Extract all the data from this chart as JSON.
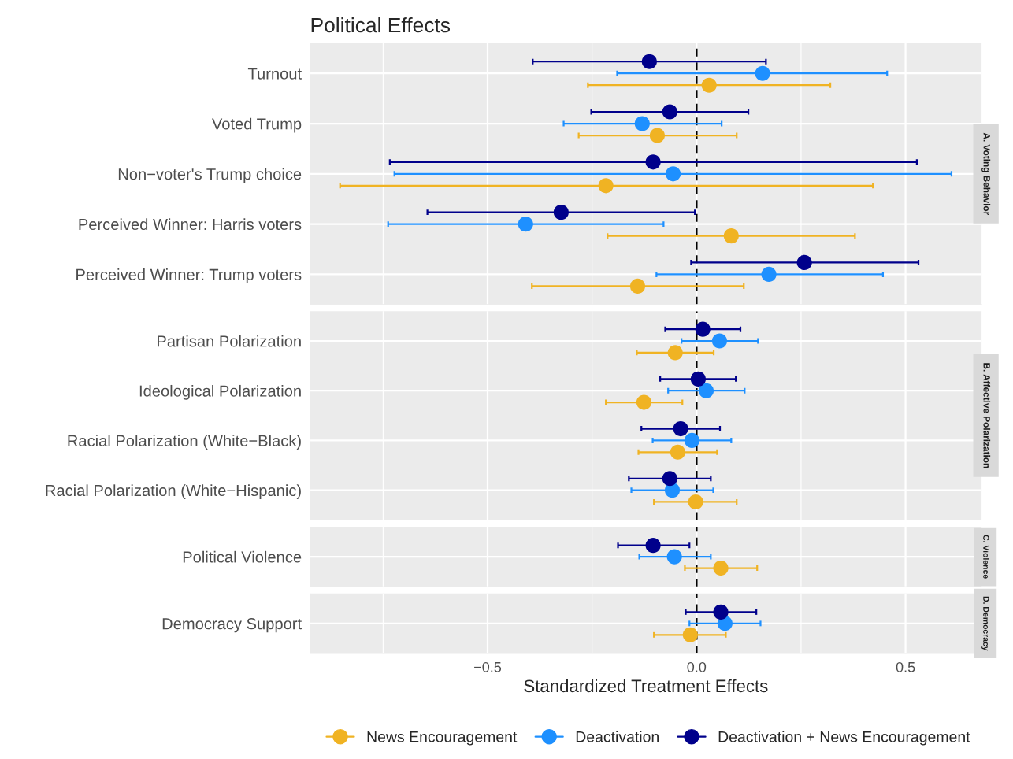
{
  "chart_data": [
    {
      "type": "scatter",
      "orientation": "horizontal",
      "title": "Political Effects",
      "y2label": "A. Voting Behavior",
      "categories": [
        "Turnout",
        "Voted Trump",
        "Non−voter's Trump choice",
        "Perceived Winner: Harris voters",
        "Perceived Winner: Trump voters"
      ],
      "xlim": [
        -0.925,
        0.682
      ],
      "xticks": [
        {
          "value": -0.75,
          "label": null
        },
        -0.5,
        {
          "value": -0.25,
          "label": null
        },
        0,
        {
          "value": 0.25,
          "label": null
        },
        0.5
      ],
      "tick_labels": "y",
      "grid": true,
      "marker": "circle",
      "ref_lines": [
        {
          "axis": "x",
          "value": 0,
          "line_style": "dashed",
          "color": "#000000"
        }
      ],
      "series": [
        {
          "color": "#f0b323",
          "values": [
            0.03,
            -0.094,
            -0.217,
            0.083,
            -0.141
          ],
          "errors": [
            [
              -0.26,
              0.32
            ],
            [
              -0.282,
              0.096
            ],
            [
              -0.853,
              0.422
            ],
            [
              -0.213,
              0.379
            ],
            [
              -0.394,
              0.113
            ]
          ]
        },
        {
          "color": "#1e90ff",
          "values": [
            0.158,
            -0.13,
            -0.056,
            -0.409,
            0.173
          ],
          "errors": [
            [
              -0.19,
              0.456
            ],
            [
              -0.318,
              0.06
            ],
            [
              -0.723,
              0.61
            ],
            [
              -0.738,
              -0.079
            ],
            [
              -0.096,
              0.446
            ]
          ]
        },
        {
          "color": "#00008b",
          "values": [
            -0.113,
            -0.064,
            -0.104,
            -0.324,
            0.258
          ],
          "errors": [
            [
              -0.392,
              0.166
            ],
            [
              -0.252,
              0.124
            ],
            [
              -0.734,
              0.527
            ],
            [
              -0.644,
              -0.004
            ],
            [
              -0.013,
              0.531
            ]
          ]
        }
      ]
    },
    {
      "type": "scatter",
      "orientation": "horizontal",
      "y2label": "B. Affective Polarization",
      "categories": [
        "Partisan Polarization",
        "Ideological Polarization",
        "Racial Polarization (White−Black)",
        "Racial Polarization (White−Hispanic)"
      ],
      "xlim": [
        -0.925,
        0.682
      ],
      "xticks": [
        {
          "value": -0.75,
          "label": null
        },
        -0.5,
        {
          "value": -0.25,
          "label": null
        },
        0,
        {
          "value": 0.25,
          "label": null
        },
        0.5
      ],
      "tick_labels": "y",
      "grid": true,
      "marker": "circle",
      "ref_lines": [
        {
          "axis": "x",
          "value": 0,
          "line_style": "dashed",
          "color": "#000000"
        }
      ],
      "series": [
        {
          "color": "#f0b323",
          "values": [
            -0.051,
            -0.126,
            -0.045,
            -0.002
          ],
          "errors": [
            [
              -0.143,
              0.041
            ],
            [
              -0.217,
              -0.034
            ],
            [
              -0.139,
              0.049
            ],
            [
              -0.102,
              0.096
            ]
          ]
        },
        {
          "color": "#1e90ff",
          "values": [
            0.055,
            0.023,
            -0.011,
            -0.058
          ],
          "errors": [
            [
              -0.036,
              0.147
            ],
            [
              -0.068,
              0.115
            ],
            [
              -0.105,
              0.083
            ],
            [
              -0.156,
              0.04
            ]
          ]
        },
        {
          "color": "#00008b",
          "values": [
            0.015,
            0.004,
            -0.038,
            -0.064
          ],
          "errors": [
            [
              -0.075,
              0.105
            ],
            [
              -0.087,
              0.094
            ],
            [
              -0.132,
              0.056
            ],
            [
              -0.162,
              0.034
            ]
          ]
        }
      ]
    },
    {
      "type": "scatter",
      "orientation": "horizontal",
      "y2label": "C. Violence",
      "categories": [
        "Political Violence"
      ],
      "xlim": [
        -0.925,
        0.682
      ],
      "xticks": [
        {
          "value": -0.75,
          "label": null
        },
        -0.5,
        {
          "value": -0.25,
          "label": null
        },
        0,
        {
          "value": 0.25,
          "label": null
        },
        0.5
      ],
      "tick_labels": "y",
      "grid": true,
      "marker": "circle",
      "ref_lines": [
        {
          "axis": "x",
          "value": 0,
          "line_style": "dashed",
          "color": "#000000"
        }
      ],
      "series": [
        {
          "color": "#f0b323",
          "values": [
            0.058
          ],
          "errors": [
            [
              -0.028,
              0.145
            ]
          ]
        },
        {
          "color": "#1e90ff",
          "values": [
            -0.053
          ],
          "errors": [
            [
              -0.137,
              0.034
            ]
          ]
        },
        {
          "color": "#00008b",
          "values": [
            -0.104
          ],
          "errors": [
            [
              -0.188,
              -0.017
            ]
          ]
        }
      ]
    },
    {
      "type": "scatter",
      "orientation": "horizontal",
      "y2label": "D. Democracy",
      "categories": [
        "Democracy Support"
      ],
      "xlabel": "Standardized Treatment Effects",
      "xlim": [
        -0.925,
        0.682
      ],
      "xticks": [
        {
          "value": -0.75,
          "label": null
        },
        {
          "value": -0.5,
          "label": "−0.5"
        },
        {
          "value": -0.25,
          "label": null
        },
        {
          "value": 0.0,
          "label": "0.0"
        },
        {
          "value": 0.25,
          "label": null
        },
        {
          "value": 0.5,
          "label": "0.5"
        }
      ],
      "grid": true,
      "marker": "circle",
      "legend": "bottom",
      "ref_lines": [
        {
          "axis": "x",
          "value": 0,
          "line_style": "dashed",
          "color": "#000000"
        }
      ],
      "series": [
        {
          "name": "News Encouragement",
          "color": "#f0b323",
          "values": [
            -0.015
          ],
          "errors": [
            [
              -0.102,
              0.07
            ]
          ]
        },
        {
          "name": "Deactivation",
          "color": "#1e90ff",
          "values": [
            0.068
          ],
          "errors": [
            [
              -0.017,
              0.153
            ]
          ]
        },
        {
          "name": "Deactivation + News Encouragement",
          "color": "#00008b",
          "values": [
            0.058
          ],
          "errors": [
            [
              -0.026,
              0.143
            ]
          ]
        }
      ]
    }
  ]
}
